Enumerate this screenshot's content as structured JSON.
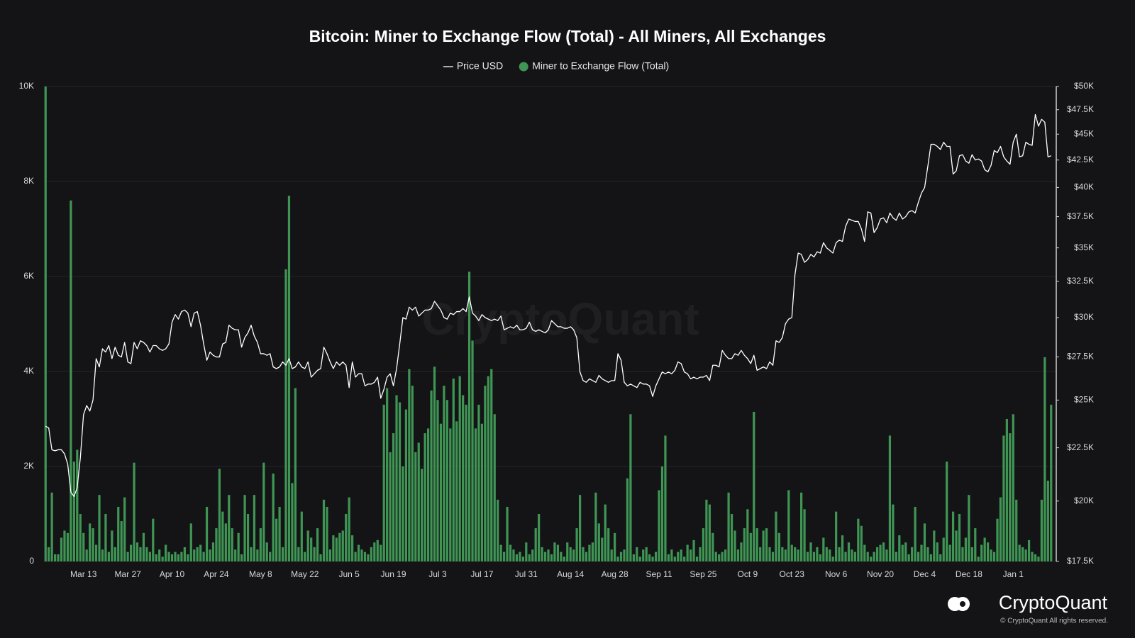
{
  "chart_data": {
    "type": "bar",
    "title": "Bitcoin: Miner to Exchange Flow (Total) - All Miners, All Exchanges",
    "legend": "top",
    "grid": true,
    "y2scale": "log",
    "categories": [
      null,
      null,
      null,
      null,
      null,
      null,
      null,
      null,
      null,
      null,
      null,
      null,
      "Mar 13",
      null,
      null,
      null,
      null,
      null,
      null,
      null,
      null,
      null,
      null,
      null,
      null,
      null,
      "Mar 27",
      null,
      null,
      null,
      null,
      null,
      null,
      null,
      null,
      null,
      null,
      null,
      null,
      null,
      "Apr 10",
      null,
      null,
      null,
      null,
      null,
      null,
      null,
      null,
      null,
      null,
      null,
      null,
      null,
      "Apr 24",
      null,
      null,
      null,
      null,
      null,
      null,
      null,
      null,
      null,
      null,
      null,
      null,
      null,
      "May 8",
      null,
      null,
      null,
      null,
      null,
      null,
      null,
      null,
      null,
      null,
      null,
      null,
      null,
      "May 22",
      null,
      null,
      null,
      null,
      null,
      null,
      null,
      null,
      null,
      null,
      null,
      null,
      null,
      "Jun 5",
      null,
      null,
      null,
      null,
      null,
      null,
      null,
      null,
      null,
      null,
      null,
      null,
      null,
      "Jun 19",
      null,
      null,
      null,
      null,
      null,
      null,
      null,
      null,
      null,
      null,
      null,
      null,
      null,
      "Jul 3",
      null,
      null,
      null,
      null,
      null,
      null,
      null,
      null,
      null,
      null,
      null,
      null,
      null,
      "Jul 17",
      null,
      null,
      null,
      null,
      null,
      null,
      null,
      null,
      null,
      null,
      null,
      null,
      null,
      "Jul 31",
      null,
      null,
      null,
      null,
      null,
      null,
      null,
      null,
      null,
      null,
      null,
      null,
      null,
      "Aug 14",
      null,
      null,
      null,
      null,
      null,
      null,
      null,
      null,
      null,
      null,
      null,
      null,
      null,
      "Aug 28",
      null,
      null,
      null,
      null,
      null,
      null,
      null,
      null,
      null,
      null,
      null,
      null,
      null,
      "Sep 11",
      null,
      null,
      null,
      null,
      null,
      null,
      null,
      null,
      null,
      null,
      null,
      null,
      null,
      "Sep 25",
      null,
      null,
      null,
      null,
      null,
      null,
      null,
      null,
      null,
      null,
      null,
      null,
      null,
      "Oct 9",
      null,
      null,
      null,
      null,
      null,
      null,
      null,
      null,
      null,
      null,
      null,
      null,
      null,
      "Oct 23",
      null,
      null,
      null,
      null,
      null,
      null,
      null,
      null,
      null,
      null,
      null,
      null,
      null,
      "Nov 6",
      null,
      null,
      null,
      null,
      null,
      null,
      null,
      null,
      null,
      null,
      null,
      null,
      null,
      "Nov 20",
      null,
      null,
      null,
      null,
      null,
      null,
      null,
      null,
      null,
      null,
      null,
      null,
      null,
      "Dec 4",
      null,
      null,
      null,
      null,
      null,
      null,
      null,
      null,
      null,
      null,
      null,
      null,
      null,
      "Dec 18",
      null,
      null,
      null,
      null,
      null,
      null,
      null,
      null,
      null,
      null,
      null,
      null,
      null,
      "Jan 1",
      null,
      null,
      null,
      null,
      null,
      null,
      null,
      null,
      null,
      null,
      null,
      null
    ],
    "series": [
      {
        "name": "Miner to Exchange Flow (Total)",
        "type": "bar",
        "axis": "y",
        "color": "#3f9654",
        "values": [
          10000,
          300,
          1450,
          150,
          150,
          500,
          650,
          600,
          7600,
          2100,
          2350,
          1000,
          600,
          250,
          800,
          700,
          350,
          1400,
          250,
          1000,
          200,
          650,
          300,
          1150,
          850,
          1350,
          200,
          350,
          2080,
          400,
          300,
          600,
          300,
          200,
          900,
          150,
          250,
          100,
          350,
          200,
          150,
          200,
          150,
          200,
          300,
          150,
          800,
          250,
          300,
          350,
          200,
          1150,
          250,
          400,
          700,
          1950,
          1050,
          800,
          1400,
          700,
          250,
          600,
          150,
          1400,
          1000,
          300,
          1400,
          250,
          700,
          2080,
          400,
          200,
          1850,
          900,
          1150,
          300,
          6150,
          7700,
          1650,
          3650,
          300,
          1050,
          200,
          650,
          500,
          300,
          700,
          150,
          1300,
          1150,
          250,
          550,
          500,
          600,
          650,
          1000,
          1350,
          550,
          200,
          350,
          250,
          200,
          150,
          300,
          400,
          450,
          350,
          3300,
          3650,
          2300,
          2700,
          3500,
          3350,
          2000,
          3200,
          4050,
          3700,
          2300,
          2500,
          1950,
          2700,
          2800,
          3600,
          4100,
          3400,
          2900,
          3700,
          3400,
          2800,
          3850,
          2950,
          3900,
          3500,
          3300,
          6100,
          4650,
          2800,
          3300,
          2900,
          3700,
          3900,
          4050,
          3100,
          1300,
          350,
          200,
          1150,
          350,
          250,
          150,
          200,
          100,
          400,
          150,
          250,
          700,
          1000,
          300,
          200,
          250,
          150,
          400,
          350,
          200,
          100,
          400,
          300,
          250,
          700,
          1400,
          300,
          200,
          350,
          400,
          1450,
          800,
          500,
          1200,
          700,
          250,
          600,
          100,
          200,
          250,
          1750,
          3100,
          150,
          300,
          100,
          250,
          300,
          150,
          100,
          200,
          1500,
          2000,
          2650,
          150,
          250,
          100,
          200,
          250,
          100,
          350,
          250,
          450,
          100,
          300,
          700,
          1300,
          1200,
          600,
          200,
          150,
          200,
          250,
          1450,
          1000,
          650,
          250,
          400,
          700,
          1100,
          600,
          3150,
          700,
          300,
          650,
          700,
          300,
          200,
          1050,
          600,
          300,
          250,
          1500,
          350,
          300,
          250,
          1450,
          1100,
          200,
          400,
          200,
          300,
          150,
          500,
          300,
          250,
          100,
          1050,
          300,
          550,
          200,
          400,
          250,
          200,
          900,
          750,
          350,
          200,
          100,
          200,
          300,
          350,
          400,
          250,
          2650,
          1200,
          200,
          550,
          350,
          400,
          150,
          300,
          1150,
          200,
          350,
          800,
          300,
          150,
          650,
          400,
          150,
          500,
          2100,
          350,
          1050,
          650,
          1000,
          300,
          500,
          1400,
          300,
          700,
          100,
          350,
          500,
          400,
          250,
          200,
          900,
          1350,
          2650,
          3000,
          2700,
          3100,
          1300,
          350,
          300,
          250,
          450,
          200,
          150,
          100,
          1300,
          4300,
          1700,
          3300
        ]
      },
      {
        "name": "Price USD",
        "type": "line",
        "axis": "y2",
        "color": "#ffffff",
        "values": [
          23600,
          23500,
          22400,
          22350,
          22400,
          22400,
          22200,
          21700,
          20400,
          20200,
          20600,
          22000,
          24200,
          24700,
          24400,
          25000,
          27400,
          26900,
          28000,
          27800,
          28200,
          27400,
          28100,
          27600,
          27500,
          28400,
          27200,
          27100,
          28400,
          28000,
          28500,
          28400,
          28200,
          27800,
          28200,
          28200,
          28000,
          27900,
          28000,
          28300,
          29700,
          30200,
          29900,
          30400,
          30500,
          30300,
          29400,
          30300,
          30400,
          29500,
          28300,
          27300,
          27800,
          27600,
          27500,
          27500,
          28300,
          28400,
          29500,
          29300,
          29200,
          29200,
          28100,
          28700,
          29000,
          29500,
          28800,
          28400,
          27700,
          27700,
          27600,
          27700,
          26900,
          26800,
          26900,
          27200,
          27000,
          27400,
          26800,
          26900,
          27200,
          26900,
          26800,
          27200,
          26300,
          26500,
          26700,
          26800,
          28100,
          27700,
          27200,
          26800,
          27200,
          27000,
          27200,
          27000,
          25700,
          27200,
          26300,
          26500,
          26500,
          25800,
          25900,
          25900,
          26000,
          26300,
          25100,
          25600,
          26300,
          26500,
          25800,
          26800,
          28300,
          30000,
          29900,
          30700,
          30500,
          30700,
          30100,
          30300,
          30500,
          30500,
          30600,
          31100,
          30800,
          30500,
          30000,
          29900,
          30300,
          30200,
          30400,
          30400,
          30600,
          30400,
          31400,
          30300,
          30100,
          29800,
          30200,
          30000,
          29900,
          29800,
          29900,
          29800,
          30100,
          29200,
          29300,
          29400,
          29300,
          29500,
          29200,
          29200,
          29300,
          29700,
          29200,
          29100,
          29200,
          29100,
          29000,
          29200,
          29800,
          29600,
          29400,
          29400,
          29300,
          29300,
          29400,
          29200,
          28700,
          26600,
          26100,
          26000,
          26200,
          26100,
          26000,
          26400,
          26200,
          26100,
          26000,
          26100,
          26100,
          27700,
          27300,
          26000,
          25800,
          25900,
          25800,
          25700,
          26000,
          25900,
          25900,
          25800,
          25200,
          25800,
          26200,
          26600,
          26500,
          26600,
          26500,
          26700,
          27200,
          27100,
          26600,
          26500,
          26200,
          26300,
          26200,
          26300,
          26300,
          26400,
          26100,
          27000,
          27000,
          26900,
          27900,
          27600,
          27400,
          27400,
          27700,
          27600,
          27900,
          27600,
          27400,
          27100,
          27600,
          26700,
          26800,
          26900,
          26800,
          27200,
          27000,
          28500,
          28400,
          28700,
          29600,
          29900,
          30000,
          33000,
          34600,
          34500,
          33900,
          34100,
          34500,
          34300,
          34700,
          34600,
          35400,
          35000,
          34800,
          34600,
          35400,
          35600,
          35500,
          36700,
          37300,
          37200,
          37100,
          37100,
          36500,
          35500,
          37900,
          37800,
          36200,
          36600,
          37300,
          37400,
          37000,
          37800,
          37400,
          37200,
          37800,
          37300,
          37500,
          37900,
          38000,
          37800,
          38700,
          39500,
          40000,
          41900,
          44000,
          44000,
          43800,
          43500,
          44200,
          43800,
          43800,
          41200,
          41500,
          42900,
          43000,
          42400,
          42200,
          43000,
          42500,
          42600,
          42400,
          41600,
          41400,
          42000,
          43400,
          43200,
          43800,
          42800,
          42400,
          42100,
          44200,
          45000,
          42800,
          42900,
          44200,
          44000,
          43900,
          47000,
          45800,
          46500,
          46200,
          42800,
          42900
        ]
      }
    ],
    "ylim": [
      0,
      10000
    ],
    "yticks": [
      0,
      {
        "value": 2000,
        "label": "2K"
      },
      {
        "value": 4000,
        "label": "4K"
      },
      {
        "value": 6000,
        "label": "6K"
      },
      {
        "value": 8000,
        "label": "8K"
      },
      {
        "value": 10000,
        "label": "10K"
      }
    ],
    "y2lim": [
      17500,
      50000
    ],
    "y2ticks": [
      {
        "value": 17500,
        "label": "$17.5K"
      },
      {
        "value": 20000,
        "label": "$20K"
      },
      {
        "value": 22500,
        "label": "$22.5K"
      },
      {
        "value": 25000,
        "label": "$25K"
      },
      {
        "value": 27500,
        "label": "$27.5K"
      },
      {
        "value": 30000,
        "label": "$30K"
      },
      {
        "value": 32500,
        "label": "$32.5K"
      },
      {
        "value": 35000,
        "label": "$35K"
      },
      {
        "value": 37500,
        "label": "$37.5K"
      },
      {
        "value": 40000,
        "label": "$40K"
      },
      {
        "value": 42500,
        "label": "$42.5K"
      },
      {
        "value": 45000,
        "label": "$45K"
      },
      {
        "value": 47500,
        "label": "$47.5K"
      },
      {
        "value": 50000,
        "label": "$50K"
      }
    ]
  },
  "branding": {
    "watermark": "CryptoQuant",
    "logo": "CryptoQuant",
    "copyright": "© CryptoQuant All rights reserved."
  }
}
